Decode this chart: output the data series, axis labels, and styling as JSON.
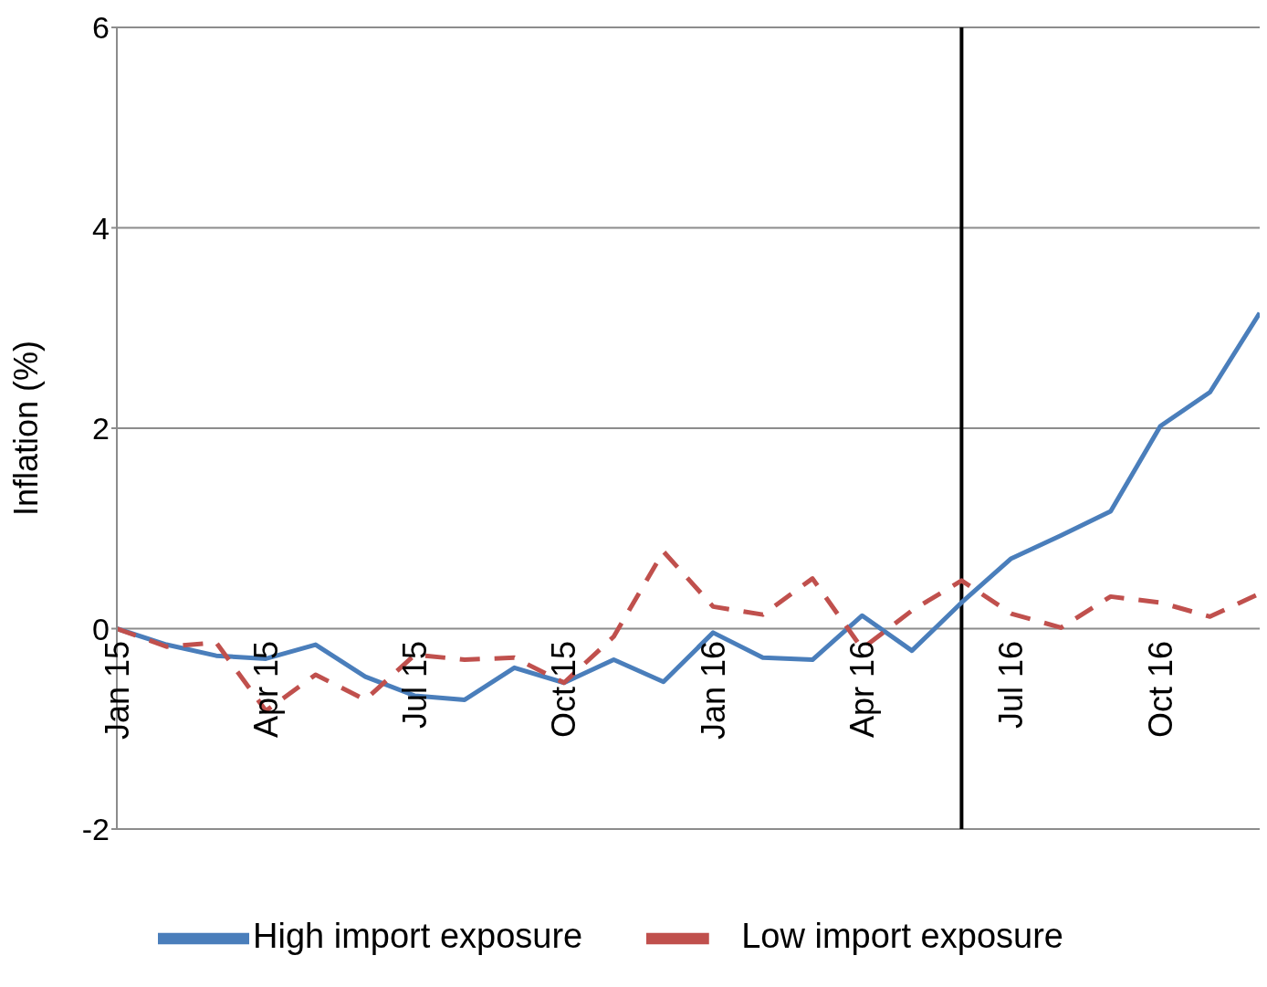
{
  "chart_data": {
    "type": "line",
    "ylabel": "Inflation (%)",
    "x": [
      "2015-01",
      "2015-02",
      "2015-03",
      "2015-04",
      "2015-05",
      "2015-06",
      "2015-07",
      "2015-08",
      "2015-09",
      "2015-10",
      "2015-11",
      "2015-12",
      "2016-01",
      "2016-02",
      "2016-03",
      "2016-04",
      "2016-05",
      "2016-06",
      "2016-07",
      "2016-08",
      "2016-09",
      "2016-10",
      "2016-11",
      "2016-12"
    ],
    "series": [
      {
        "name": "High import exposure",
        "color": "#4a7ebb",
        "line_style": "solid",
        "values": [
          0,
          -0.16,
          -0.27,
          -0.3,
          -0.16,
          -0.48,
          -0.67,
          -0.71,
          -0.39,
          -0.54,
          -0.31,
          -0.53,
          -0.04,
          -0.29,
          -0.31,
          0.13,
          -0.22,
          0.26,
          0.7,
          0.93,
          1.17,
          2.02,
          2.36,
          3.15
        ]
      },
      {
        "name": "Low import exposure",
        "color": "#c0504d",
        "line_style": "dashed",
        "values": [
          0,
          -0.18,
          -0.14,
          -0.82,
          -0.46,
          -0.71,
          -0.26,
          -0.31,
          -0.29,
          -0.54,
          -0.08,
          0.77,
          0.22,
          0.14,
          0.5,
          -0.2,
          0.18,
          0.48,
          0.15,
          0.01,
          0.32,
          0.26,
          0.12,
          0.35
        ]
      }
    ],
    "xlim": [
      "2015-01",
      "2016-12"
    ],
    "xticks": [
      {
        "value": "2015-01",
        "label": "Jan 15"
      },
      {
        "value": "2015-04",
        "label": "Apr 15"
      },
      {
        "value": "2015-07",
        "label": "Jul 15"
      },
      {
        "value": "2015-10",
        "label": "Oct 15"
      },
      {
        "value": "2016-01",
        "label": "Jan 16"
      },
      {
        "value": "2016-04",
        "label": "Apr 16"
      },
      {
        "value": "2016-07",
        "label": "Jul 16"
      },
      {
        "value": "2016-10",
        "label": "Oct 16"
      }
    ],
    "ylim": [
      -2,
      6
    ],
    "yticks": [
      -2,
      0,
      2,
      4,
      6
    ],
    "grid": "y",
    "legend": "bottom",
    "marker": "none",
    "ref_lines": [
      {
        "axis": "x",
        "value": "2016-06",
        "color": "#000000"
      }
    ]
  }
}
